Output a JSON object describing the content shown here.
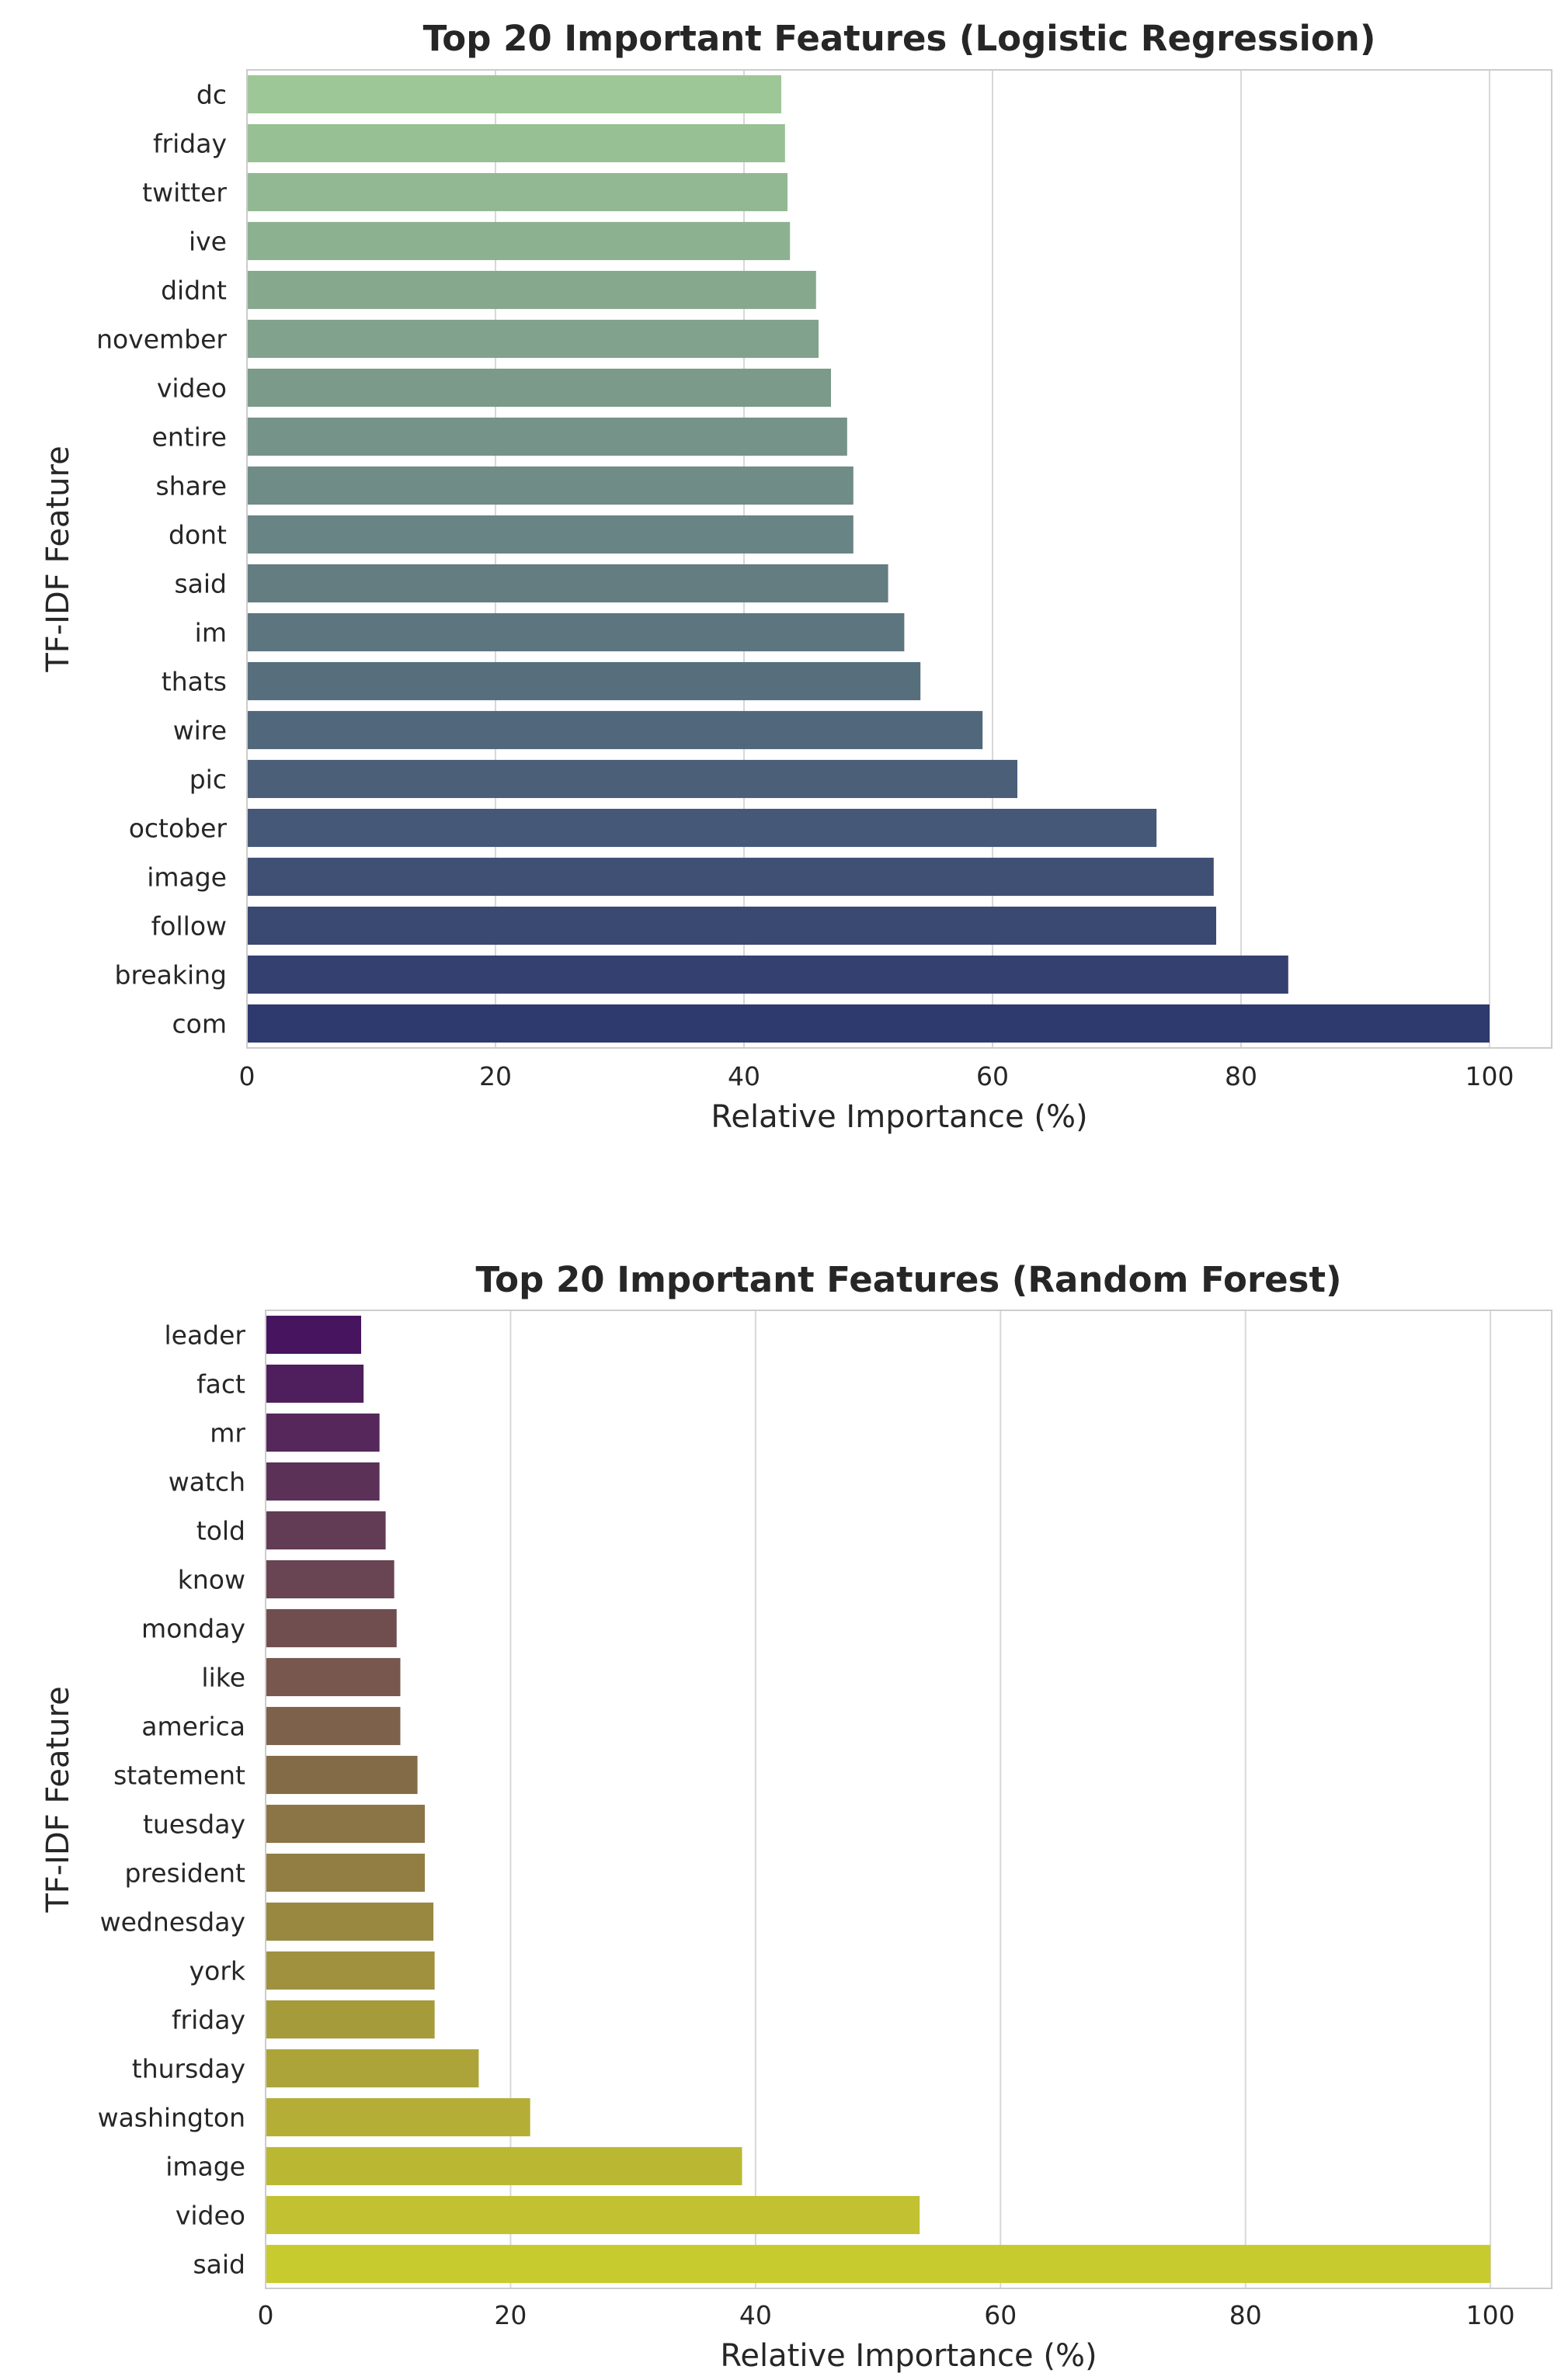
{
  "chart_data": [
    {
      "type": "bar",
      "orientation": "horizontal",
      "title": "Top 20 Important Features (Logistic Regression)",
      "xlabel": "Relative Importance (%)",
      "ylabel": "TF-IDF Feature",
      "xlim": [
        0,
        105
      ],
      "xticks": [
        "0",
        "20",
        "40",
        "60",
        "80",
        "100"
      ],
      "grid": true,
      "palette": "crest",
      "color_start": "#9ec797",
      "color_end": "#2e3a6e",
      "categories": [
        "dc",
        "friday",
        "twitter",
        "ive",
        "didnt",
        "november",
        "video",
        "entire",
        "share",
        "dont",
        "said",
        "im",
        "thats",
        "wire",
        "pic",
        "october",
        "image",
        "follow",
        "breaking",
        "com"
      ],
      "values": [
        43,
        43.3,
        43.5,
        43.7,
        45.8,
        46,
        47,
        48.3,
        48.8,
        48.8,
        51.6,
        52.9,
        54.2,
        59.2,
        62,
        73.2,
        77.8,
        78,
        83.8,
        100
      ]
    },
    {
      "type": "bar",
      "orientation": "horizontal",
      "title": "Top 20 Important Features (Random Forest)",
      "xlabel": "Relative Importance (%)",
      "ylabel": "TF-IDF Feature",
      "xlim": [
        0,
        105
      ],
      "xticks": [
        "0",
        "20",
        "40",
        "60",
        "80",
        "100"
      ],
      "grid": true,
      "palette": "viridis",
      "color_start": "#471460",
      "color_end": "#c8cb2e",
      "categories": [
        "leader",
        "fact",
        "mr",
        "watch",
        "told",
        "know",
        "monday",
        "like",
        "america",
        "statement",
        "tuesday",
        "president",
        "wednesday",
        "york",
        "friday",
        "thursday",
        "washington",
        "image",
        "video",
        "said"
      ],
      "values": [
        7.8,
        8,
        9.3,
        9.3,
        9.8,
        10.5,
        10.7,
        11,
        11,
        12.4,
        13,
        13,
        13.7,
        13.8,
        13.8,
        17.4,
        21.6,
        38.9,
        53.4,
        100
      ]
    }
  ]
}
